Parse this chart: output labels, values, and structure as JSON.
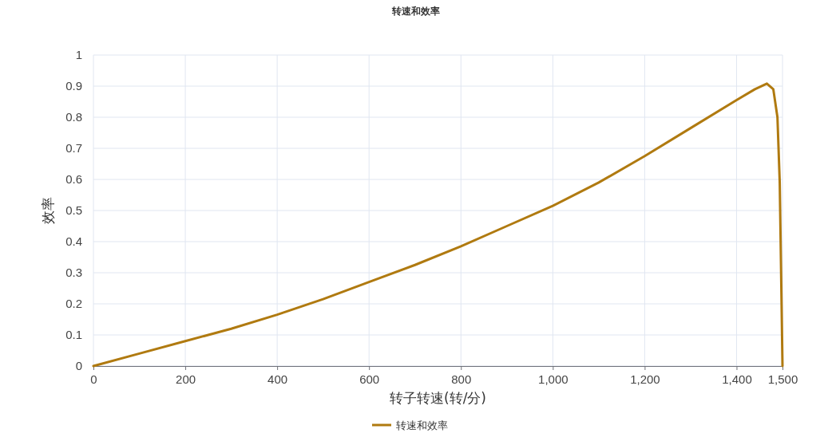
{
  "chart_data": {
    "type": "line",
    "title": "转速和效率",
    "xlabel": "转子转速(转/分)",
    "ylabel": "效率",
    "x": [
      0,
      100,
      200,
      300,
      400,
      500,
      600,
      700,
      800,
      900,
      1000,
      1100,
      1200,
      1300,
      1400,
      1440,
      1466,
      1480,
      1489,
      1494,
      1498,
      1500
    ],
    "series": [
      {
        "name": "转速和效率",
        "color": "#b07a10",
        "values": [
          0,
          0.04,
          0.08,
          0.12,
          0.165,
          0.215,
          0.27,
          0.325,
          0.385,
          0.45,
          0.515,
          0.59,
          0.675,
          0.765,
          0.855,
          0.89,
          0.908,
          0.89,
          0.8,
          0.59,
          0.2,
          0
        ]
      }
    ],
    "xlim": [
      0,
      1500
    ],
    "ylim": [
      0,
      1
    ],
    "xticks": [
      0,
      200,
      400,
      600,
      800,
      {
        "value": 1000,
        "label": "1,000"
      },
      {
        "value": 1200,
        "label": "1,200"
      },
      {
        "value": 1400,
        "label": "1,400"
      },
      {
        "value": 1500,
        "label": "1,500"
      }
    ],
    "yticks": [
      0,
      0.1,
      0.2,
      0.3,
      0.4,
      0.5,
      0.6,
      0.7,
      0.8,
      0.9,
      1
    ],
    "grid": true,
    "legend": "bottom",
    "marker": "none",
    "line_style": "solid"
  }
}
